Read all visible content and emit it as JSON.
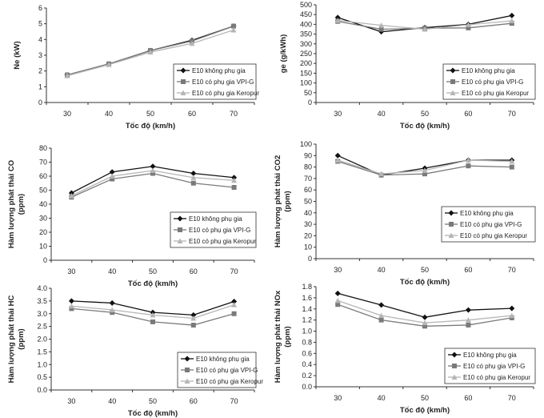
{
  "chart_data": [
    {
      "type": "line",
      "xlabel": "Tốc độ (km/h)",
      "ylabel": "Ne (kW)",
      "ylabel2": "",
      "categories": [
        "30",
        "40",
        "50",
        "60",
        "70"
      ],
      "ylim": [
        0,
        6
      ],
      "yticks": [
        0,
        1,
        2,
        3,
        4,
        5,
        6
      ],
      "grid": false,
      "legend_position": "bottom-right",
      "series": [
        {
          "name": "E10 không phụ gia",
          "values": [
            1.75,
            2.45,
            3.3,
            3.95,
            4.85
          ]
        },
        {
          "name": "E10 có phụ gia VPI-G",
          "values": [
            1.75,
            2.45,
            3.3,
            3.9,
            4.85
          ]
        },
        {
          "name": "E10 có phụ gia Keropur",
          "values": [
            1.7,
            2.4,
            3.2,
            3.75,
            4.6
          ]
        }
      ]
    },
    {
      "type": "line",
      "xlabel": "Tốc độ (km/h)",
      "ylabel": "ge (g/kWh)",
      "ylabel2": "",
      "categories": [
        "30",
        "40",
        "50",
        "60",
        "70"
      ],
      "ylim": [
        0,
        500
      ],
      "yticks": [
        0,
        50,
        100,
        150,
        200,
        250,
        300,
        350,
        400,
        450,
        500
      ],
      "grid": false,
      "legend_position": "bottom-right",
      "series": [
        {
          "name": "E10 không phụ gia",
          "values": [
            435,
            362,
            383,
            400,
            445
          ]
        },
        {
          "name": "E10 có phụ gia VPI-G",
          "values": [
            415,
            375,
            380,
            382,
            405
          ]
        },
        {
          "name": "E10 có phụ gia Keropur",
          "values": [
            420,
            395,
            375,
            398,
            418
          ]
        }
      ]
    },
    {
      "type": "line",
      "xlabel": "Tốc độ (km/h)",
      "ylabel": "Hàm lượng phát thải CO",
      "ylabel2": "(ppm)",
      "categories": [
        "30",
        "40",
        "50",
        "60",
        "70"
      ],
      "ylim": [
        0,
        80
      ],
      "yticks": [
        0,
        10,
        20,
        30,
        40,
        50,
        60,
        70,
        80
      ],
      "grid": false,
      "legend_position": "bottom-right",
      "series": [
        {
          "name": "E10 không phụ gia",
          "values": [
            48,
            63,
            67,
            62,
            59
          ]
        },
        {
          "name": "E10 có phụ gia VPI-G",
          "values": [
            45,
            58,
            62,
            55,
            52
          ]
        },
        {
          "name": "E10 có phụ gia Keropur",
          "values": [
            46,
            60,
            64,
            59,
            57
          ]
        }
      ]
    },
    {
      "type": "line",
      "xlabel": "Tốc độ (km/h)",
      "ylabel": "Hàm lượng phát thải CO2",
      "ylabel2": "(ppm)",
      "categories": [
        "30",
        "40",
        "50",
        "60",
        "70"
      ],
      "ylim": [
        0,
        100
      ],
      "yticks": [
        0,
        10,
        20,
        30,
        40,
        50,
        60,
        70,
        80,
        90,
        100
      ],
      "grid": false,
      "legend_position": "bottom-right",
      "series": [
        {
          "name": "E10 không phụ gia",
          "values": [
            90,
            73,
            79,
            86,
            86
          ]
        },
        {
          "name": "E10 có phụ gia VPI-G",
          "values": [
            85,
            73,
            74,
            81,
            80
          ]
        },
        {
          "name": "E10 có phụ gia Keropur",
          "values": [
            86,
            74,
            77,
            86,
            85
          ]
        }
      ]
    },
    {
      "type": "line",
      "xlabel": "Tốc độ (km/h)",
      "ylabel": "Hàm lượng phát thải HC",
      "ylabel2": "(ppm)",
      "categories": [
        "30",
        "40",
        "50",
        "60",
        "70"
      ],
      "ylim": [
        0,
        4
      ],
      "yticks": [
        "0.0",
        "0.5",
        "1.0",
        "1.5",
        "2.0",
        "2.5",
        "3.0",
        "3.5",
        "4.0"
      ],
      "grid": false,
      "legend_position": "bottom-right",
      "series": [
        {
          "name": "E10 không phụ gia",
          "values": [
            3.5,
            3.42,
            3.05,
            2.95,
            3.48
          ]
        },
        {
          "name": "E10 có phụ gia VPI-G",
          "values": [
            3.2,
            3.05,
            2.68,
            2.55,
            3.0
          ]
        },
        {
          "name": "E10 có phụ gia Keropur",
          "values": [
            3.3,
            3.15,
            2.95,
            2.82,
            3.35
          ]
        }
      ]
    },
    {
      "type": "line",
      "xlabel": "Tốc độ (km/h)",
      "ylabel": "Hàm lượng phát thải NOx",
      "ylabel2": "(ppm)",
      "categories": [
        "30",
        "40",
        "50",
        "60",
        "70"
      ],
      "ylim": [
        0,
        1.8
      ],
      "yticks": [
        "0.0",
        "0.2",
        "0.4",
        "0.6",
        "0.8",
        "1.0",
        "1.2",
        "1.4",
        "1.6",
        "1.8"
      ],
      "grid": false,
      "legend_position": "bottom-right",
      "series": [
        {
          "name": "E10 không phụ gia",
          "values": [
            1.68,
            1.47,
            1.25,
            1.38,
            1.41
          ]
        },
        {
          "name": "E10 có phụ gia VPI-G",
          "values": [
            1.48,
            1.2,
            1.09,
            1.11,
            1.24
          ]
        },
        {
          "name": "E10 có phụ gia Keropur",
          "values": [
            1.55,
            1.28,
            1.15,
            1.2,
            1.28
          ]
        }
      ]
    }
  ],
  "series_style": {
    "colors": [
      "#111111",
      "#7a7a7a",
      "#b5b5b5"
    ],
    "markers": [
      "diamond",
      "square",
      "triangle"
    ]
  }
}
